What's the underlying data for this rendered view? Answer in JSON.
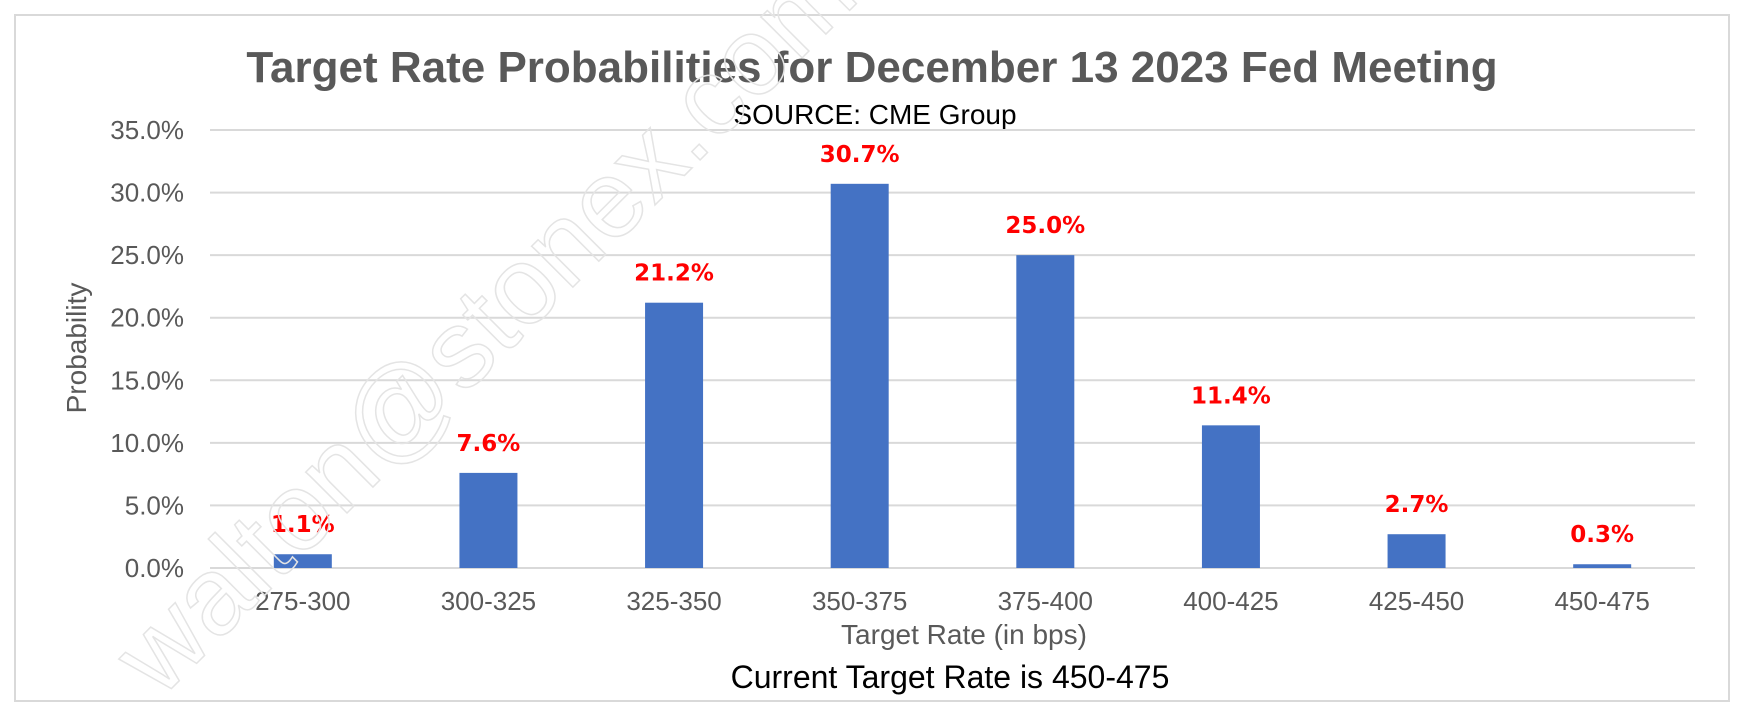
{
  "chart_data": {
    "type": "bar",
    "title": "Target Rate Probabilities for December 13 2023 Fed Meeting",
    "subtitle": "SOURCE: CME Group",
    "xlabel": "Target Rate (in bps)",
    "ylabel": "Probability",
    "footnote": "Current Target Rate is 450-475",
    "categories": [
      "275-300",
      "300-325",
      "325-350",
      "350-375",
      "375-400",
      "400-425",
      "425-450",
      "450-475"
    ],
    "values": [
      1.1,
      7.6,
      21.2,
      30.7,
      25.0,
      11.4,
      2.7,
      0.3
    ],
    "data_labels": [
      "1.1%",
      "7.6%",
      "21.2%",
      "30.7%",
      "25.0%",
      "11.4%",
      "2.7%",
      "0.3%"
    ],
    "ylim": [
      0,
      35
    ],
    "yticks": [
      "0.0%",
      "5.0%",
      "10.0%",
      "15.0%",
      "20.0%",
      "25.0%",
      "30.0%",
      "35.0%"
    ],
    "ytick_values": [
      0,
      5,
      10,
      15,
      20,
      25,
      30,
      35
    ],
    "grid": true,
    "legend": "none",
    "colors": {
      "bar": "#4472c4",
      "data_label": "#ff0000",
      "grid": "#d9d9d9",
      "title": "#595959"
    }
  },
  "watermark": "walton@stonex.com"
}
